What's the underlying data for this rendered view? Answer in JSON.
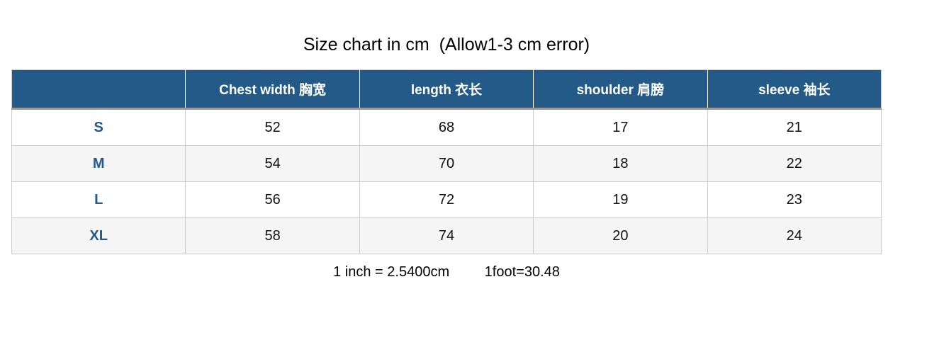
{
  "title": "Size chart in cm  (Allow1-3 cm error)",
  "chart_data": {
    "type": "table",
    "title": "Size chart in cm (Allow1-3 cm error)",
    "unit": "cm",
    "columns": [
      "",
      "Chest width 胸宽",
      "length 衣长",
      "shoulder 肩膀",
      "sleeve 袖长"
    ],
    "rows": [
      {
        "size": "S",
        "chest_width": 52,
        "length": 68,
        "shoulder": 17,
        "sleeve": 21
      },
      {
        "size": "M",
        "chest_width": 54,
        "length": 70,
        "shoulder": 18,
        "sleeve": 22
      },
      {
        "size": "L",
        "chest_width": 56,
        "length": 72,
        "shoulder": 19,
        "sleeve": 23
      },
      {
        "size": "XL",
        "chest_width": 58,
        "length": 74,
        "shoulder": 20,
        "sleeve": 24
      }
    ],
    "notes": [
      "1 inch = 2.5400cm",
      "1foot=30.48"
    ]
  },
  "table": {
    "headers": [
      "",
      "Chest width 胸宽",
      "length 衣长",
      "shoulder 肩膀",
      "sleeve 袖长"
    ],
    "rows": [
      {
        "size": "S",
        "values": [
          "52",
          "68",
          "17",
          "21"
        ]
      },
      {
        "size": "M",
        "values": [
          "54",
          "70",
          "18",
          "22"
        ]
      },
      {
        "size": "L",
        "values": [
          "56",
          "72",
          "19",
          "23"
        ]
      },
      {
        "size": "XL",
        "values": [
          "58",
          "74",
          "20",
          "24"
        ]
      }
    ]
  },
  "footer": {
    "inch_conversion": "1 inch = 2.5400cm",
    "foot_conversion": "1foot=30.48"
  },
  "colors": {
    "header_bg": "#235a88",
    "header_text": "#ffffff",
    "size_label_text": "#235a88",
    "row_alt_bg": "#f5f5f5",
    "grid_border": "#cccccc",
    "header_underline": "#9a9a9a",
    "body_text": "#111111"
  }
}
